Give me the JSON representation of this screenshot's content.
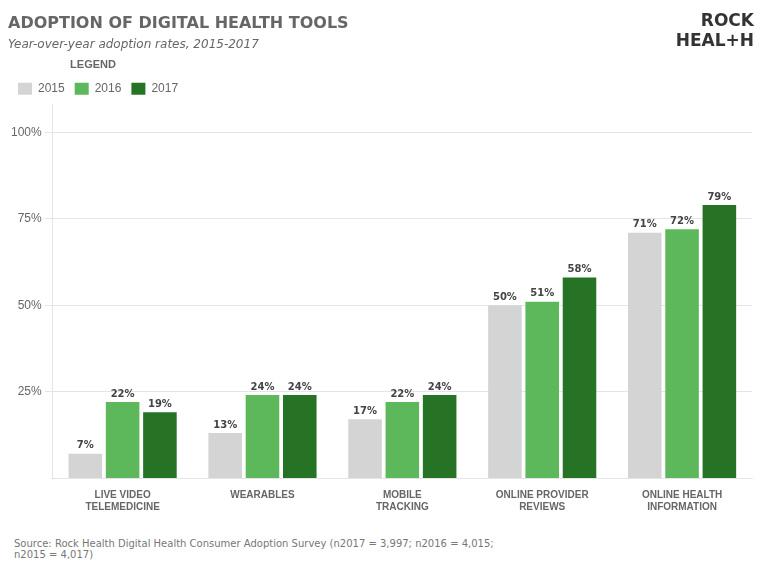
{
  "chart_data": {
    "type": "bar",
    "title": "ADOPTION OF DIGITAL HEALTH TOOLS",
    "subtitle": "Year-over-year adoption rates, 2015-2017",
    "categories": [
      "LIVE VIDEO\nTELEMEDICINE",
      "WEARABLES",
      "MOBILE\nTRACKING",
      "ONLINE PROVIDER\nREVIEWS",
      "ONLINE HEALTH\nINFORMATION"
    ],
    "series": [
      {
        "name": "2015",
        "color": "#d4d4d4",
        "values": [
          7,
          13,
          17,
          50,
          71
        ],
        "value_labels": [
          "7%",
          "13%",
          "17%",
          "50%",
          "71%"
        ]
      },
      {
        "name": "2016",
        "color": "#5db85b",
        "values": [
          22,
          24,
          22,
          51,
          72
        ],
        "value_labels": [
          "22%",
          "24%",
          "22%",
          "51%",
          "72%"
        ]
      },
      {
        "name": "2017",
        "color": "#267326",
        "values": [
          19,
          24,
          24,
          58,
          79
        ],
        "value_labels": [
          "19%",
          "24%",
          "24%",
          "58%",
          "79%"
        ]
      }
    ],
    "ylim": [
      0,
      108
    ],
    "yticks": [
      {
        "value": 25,
        "label": "25%"
      },
      {
        "value": 50,
        "label": "50%"
      },
      {
        "value": 75,
        "label": "75%"
      },
      {
        "value": 100,
        "label": "100%"
      }
    ],
    "grid": true,
    "legend": "top",
    "legend_title": "LEGEND",
    "data_labels": true,
    "annotations": [
      "ROCK",
      "HEAL+H"
    ],
    "source": "Source: Rock Health Digital Health Consumer Adoption Survey (n2017 = 3,997; n2016 = 4,015;\nn2015 = 4,017)"
  }
}
